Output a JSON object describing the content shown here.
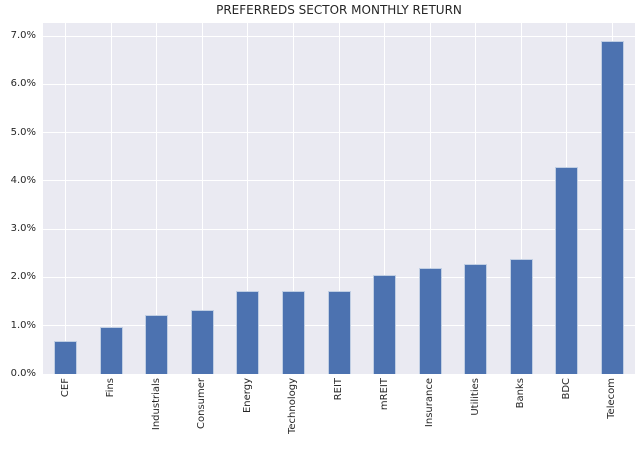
{
  "chart_data": {
    "type": "bar",
    "title": "PREFERREDS SECTOR MONTHLY RETURN",
    "xlabel": "",
    "ylabel": "",
    "categories": [
      "CEF",
      "Fins",
      "Industrials",
      "Consumer",
      "Energy",
      "Technology",
      "REIT",
      "mREIT",
      "Insurance",
      "Utilities",
      "Banks",
      "BDC",
      "Telecom"
    ],
    "values": [
      0.68,
      0.98,
      1.22,
      1.33,
      1.71,
      1.72,
      1.72,
      2.06,
      2.19,
      2.28,
      2.38,
      4.28,
      6.9
    ],
    "value_unit": "%",
    "ylim": [
      0,
      7.27
    ],
    "yticks": [
      {
        "value": 0,
        "label": "0.0%"
      },
      {
        "value": 1,
        "label": "1.0%"
      },
      {
        "value": 2,
        "label": "2.0%"
      },
      {
        "value": 3,
        "label": "3.0%"
      },
      {
        "value": 4,
        "label": "4.0%"
      },
      {
        "value": 5,
        "label": "5.0%"
      },
      {
        "value": 6,
        "label": "6.0%"
      },
      {
        "value": 7,
        "label": "7.0%"
      }
    ],
    "grid": true,
    "legend": false,
    "colors": {
      "bar_fill": "#4c72b0",
      "plot_background": "#eaeaf2",
      "gridline": "#ffffff",
      "figure_background": "#ffffff",
      "text": "#262626"
    }
  }
}
